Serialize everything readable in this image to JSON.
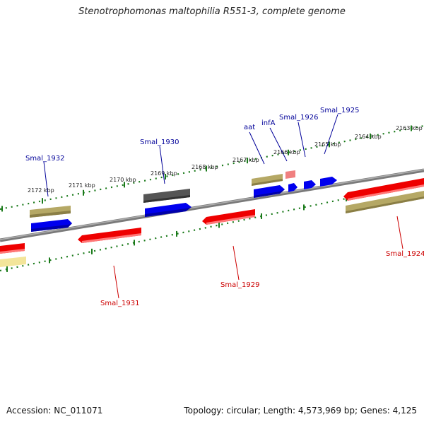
{
  "title": "Stenotrophomonas maltophilia R551-3, complete genome",
  "footer": {
    "accession": "Accession: NC_011071",
    "summary": "Topology: circular; Length: 4,573,969 bp; Genes: 4,125"
  },
  "colors": {
    "forward": "#0000ee",
    "reverse": "#ee0000",
    "forward_label": "#000099",
    "reverse_label": "#cc0000",
    "tick": "#1a7a1a",
    "rna": "#b5a865",
    "pseudo": "#555555",
    "backbone": "#8a8a8a"
  },
  "kbp_ticks": [
    "2172 kbp",
    "2171 kbp",
    "2170 kbp",
    "2169 kbp",
    "2168 kbp",
    "2167 kbp",
    "2166 kbp",
    "2165 kbp",
    "2164 kbp",
    "2163 kbp"
  ],
  "gene_labels": {
    "forward": [
      "Smal_1932",
      "Smal_1930",
      "aat",
      "infA",
      "Smal_1926",
      "Smal_1925"
    ],
    "reverse": [
      "Smal_1931",
      "Smal_1929",
      "Smal_1924"
    ]
  }
}
